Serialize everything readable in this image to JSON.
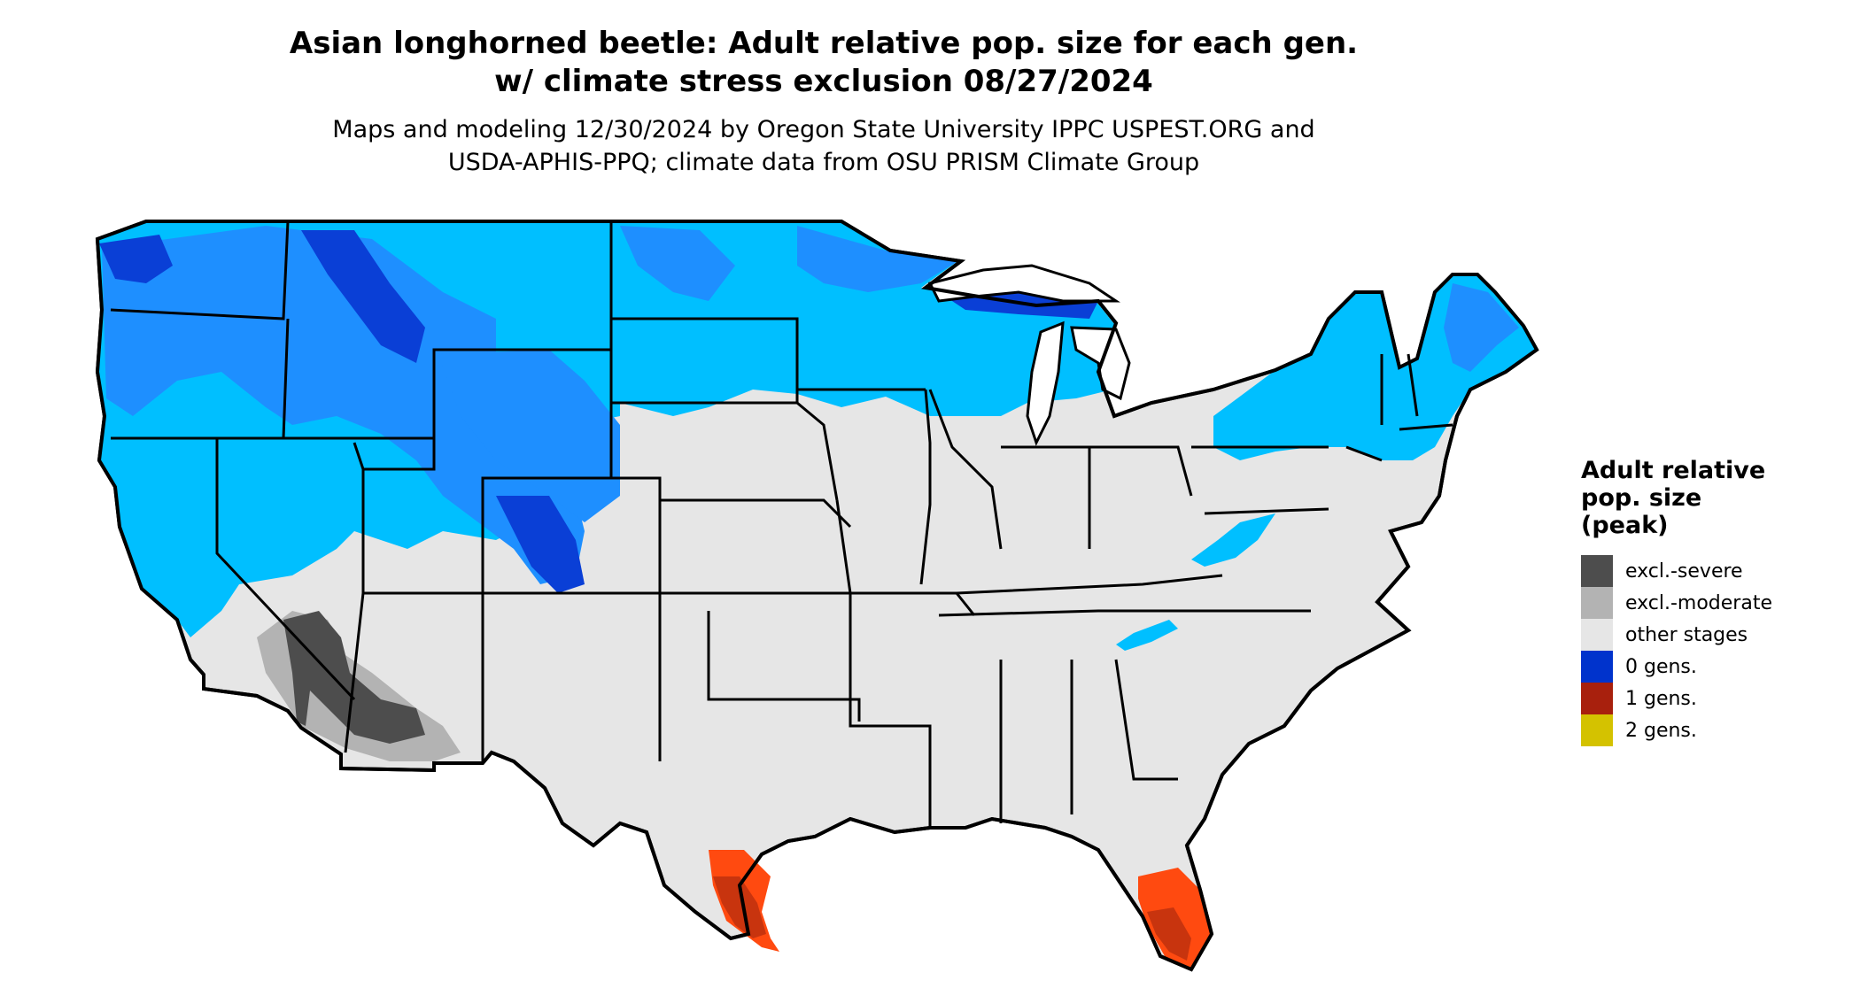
{
  "title_line1": "Asian longhorned beetle: Adult relative pop. size for each gen.",
  "title_line2": "w/ climate stress exclusion 08/27/2024",
  "subtitle_line1": "Maps and modeling 12/30/2024 by Oregon State University IPPC USPEST.ORG and",
  "subtitle_line2": "USDA-APHIS-PPQ; climate data from OSU PRISM Climate Group",
  "legend": {
    "title_line1": "Adult relative",
    "title_line2": "pop. size",
    "title_line3": "(peak)",
    "items": [
      {
        "label": "excl.-severe",
        "color": "#4d4d4d"
      },
      {
        "label": "excl.-moderate",
        "color": "#b3b3b3"
      },
      {
        "label": "other stages",
        "color": "#e6e6e6"
      },
      {
        "label": "0 gens.",
        "color": "#0033cc"
      },
      {
        "label": "1 gens.",
        "color": "#a8200d"
      },
      {
        "label": "2 gens.",
        "color": "#d4c200"
      }
    ]
  },
  "map_colors": {
    "land": "#e6e6e6",
    "zero_gen_light": "#00bfff",
    "zero_gen_mid": "#1e8fff",
    "zero_gen_dark": "#0a3fd6",
    "one_gen": "#c8340e",
    "one_gen_light": "#ff4a10",
    "excl_severe": "#4d4d4d",
    "excl_moderate": "#b3b3b3",
    "border": "#000000"
  }
}
